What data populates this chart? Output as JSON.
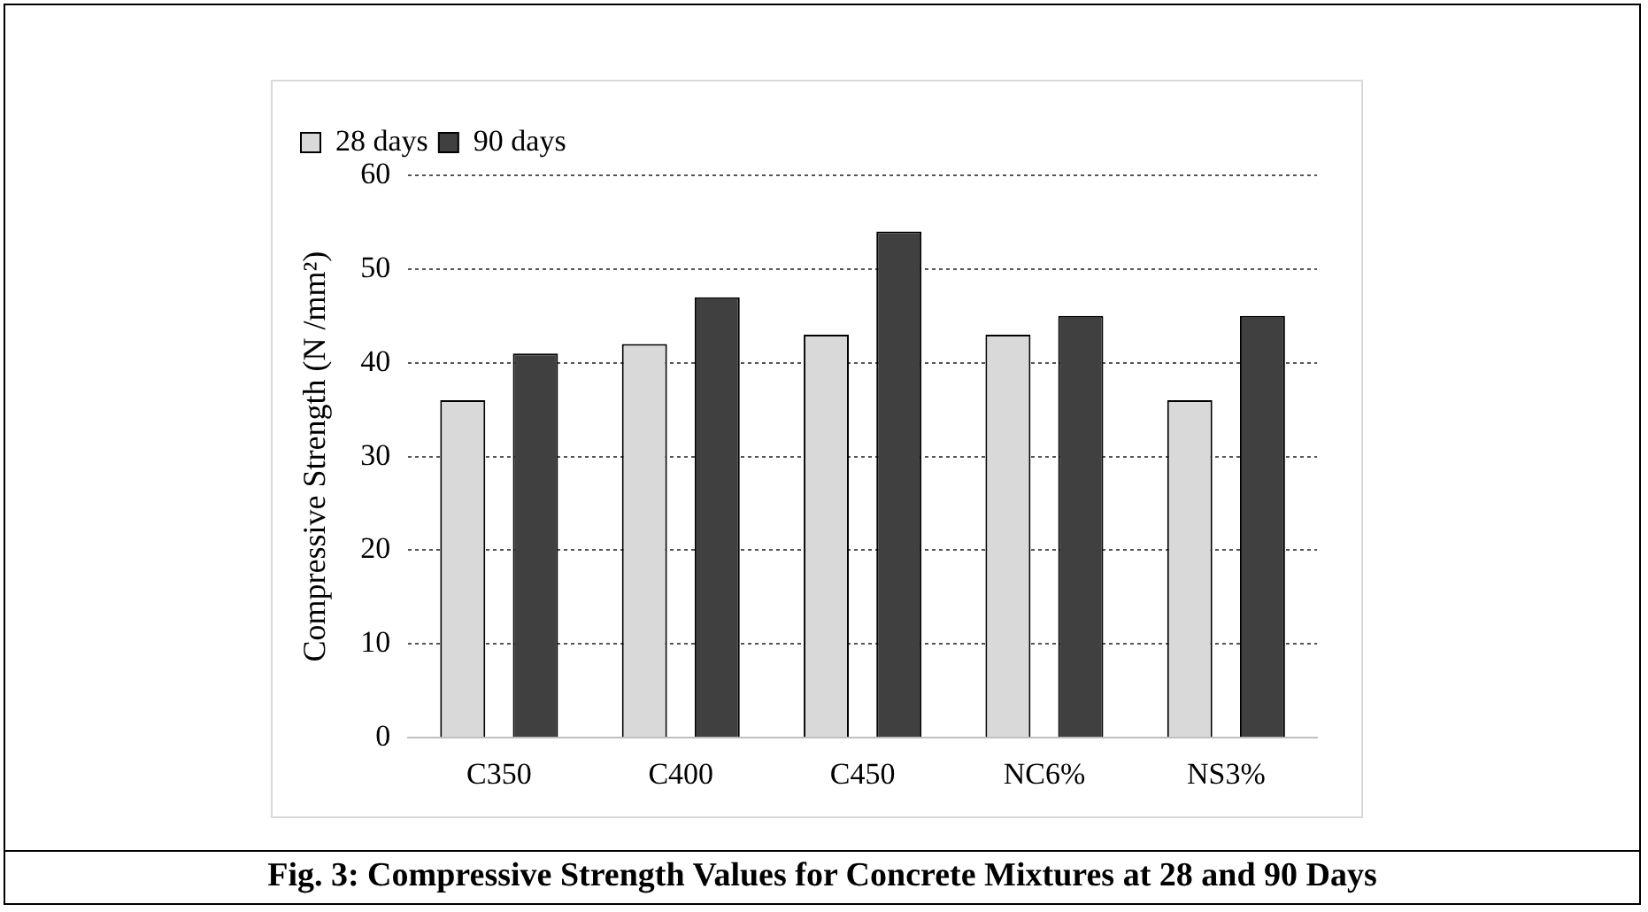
{
  "chart_data": {
    "type": "bar",
    "ylabel": "Compressive Strength (N /mm²)",
    "categories": [
      "C350",
      "C400",
      "C450",
      "NC6%",
      "NS3%"
    ],
    "series": [
      {
        "name": "28 days",
        "color": "#d9d9d9",
        "values": [
          36,
          42,
          43,
          43,
          36
        ]
      },
      {
        "name": "90 days",
        "color": "#404040",
        "values": [
          41,
          47,
          54,
          45,
          45
        ]
      }
    ],
    "ylim": [
      0,
      60
    ],
    "yticks": [
      0,
      10,
      20,
      30,
      40,
      50,
      60
    ],
    "grid": "y",
    "legend": "top left",
    "annotations": [
      "Fig. 3: Compressive Strength Values for Concrete Mixtures at 28 and 90 Days"
    ]
  }
}
